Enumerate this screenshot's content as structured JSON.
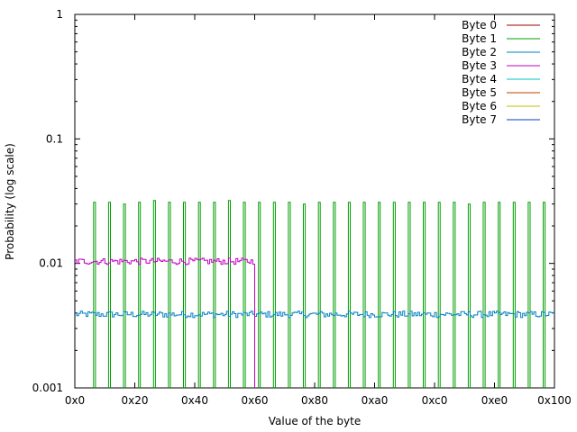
{
  "chart_data": {
    "type": "line",
    "drawstyle": "steps",
    "xlabel": "Value of the byte",
    "ylabel": "Probability (log scale)",
    "xlim": [
      0,
      256
    ],
    "ylim": [
      0.001,
      1
    ],
    "yscale": "log",
    "x_ticks": [
      {
        "value": 0,
        "label": "0x0"
      },
      {
        "value": 32,
        "label": "0x20"
      },
      {
        "value": 64,
        "label": "0x40"
      },
      {
        "value": 96,
        "label": "0x60"
      },
      {
        "value": 128,
        "label": "0x80"
      },
      {
        "value": 160,
        "label": "0xa0"
      },
      {
        "value": 192,
        "label": "0xc0"
      },
      {
        "value": 224,
        "label": "0xe0"
      },
      {
        "value": 256,
        "label": "0x100"
      }
    ],
    "y_ticks": [
      {
        "value": 1,
        "label": "1"
      },
      {
        "value": 0.1,
        "label": "0.1"
      },
      {
        "value": 0.01,
        "label": "0.01"
      },
      {
        "value": 0.001,
        "label": "0.001"
      }
    ],
    "grid": false,
    "legend_position": "top-right",
    "series": [
      {
        "name": "Byte 0",
        "color": "#a00000",
        "kind": "none",
        "approx_value": null
      },
      {
        "name": "Byte 1",
        "color": "#00a000",
        "kind": "spikes",
        "spike_spacing": 8,
        "spike_range": [
          0,
          256
        ],
        "peak_values": [
          0.031,
          0.031,
          0.03,
          0.031,
          0.032,
          0.031,
          0.031,
          0.031,
          0.031,
          0.032,
          0.031,
          0.031,
          0.031,
          0.031,
          0.03,
          0.031,
          0.031,
          0.031,
          0.031,
          0.031,
          0.031,
          0.031,
          0.031,
          0.031,
          0.031,
          0.03,
          0.031,
          0.031,
          0.031,
          0.031,
          0.031,
          0.032
        ],
        "approx_value": 0.031
      },
      {
        "name": "Byte 2",
        "color": "#0080c0",
        "kind": "flat_noisy",
        "x_range": [
          0,
          256
        ],
        "approx_value": 0.0039
      },
      {
        "name": "Byte 3",
        "color": "#c000c0",
        "kind": "flat_noisy",
        "x_range": [
          0,
          96
        ],
        "approx_value": 0.0104
      },
      {
        "name": "Byte 4",
        "color": "#00c0c0",
        "kind": "none",
        "approx_value": null
      },
      {
        "name": "Byte 5",
        "color": "#c04000",
        "kind": "none",
        "approx_value": null
      },
      {
        "name": "Byte 6",
        "color": "#c0c000",
        "kind": "none",
        "approx_value": null
      },
      {
        "name": "Byte 7",
        "color": "#0040c0",
        "kind": "none",
        "approx_value": null
      }
    ]
  }
}
